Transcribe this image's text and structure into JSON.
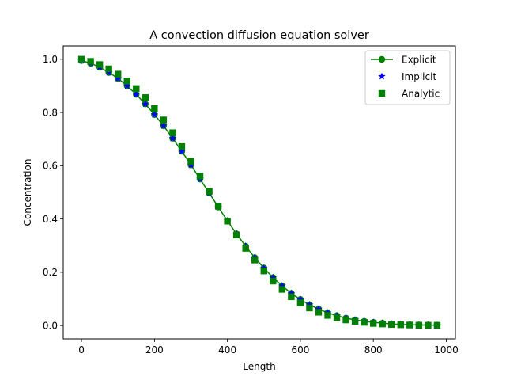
{
  "chart_data": {
    "type": "line",
    "title": "A convection diffusion equation solver",
    "xlabel": "Length",
    "ylabel": "Concentration",
    "xlim": [
      -50,
      1025
    ],
    "ylim": [
      -0.05,
      1.05
    ],
    "xticks": [
      0,
      200,
      400,
      600,
      800,
      1000
    ],
    "xtick_labels": [
      "0",
      "200",
      "400",
      "600",
      "800",
      "1000"
    ],
    "yticks": [
      0.0,
      0.2,
      0.4,
      0.6,
      0.8,
      1.0
    ],
    "ytick_labels": [
      "0.0",
      "0.2",
      "0.4",
      "0.6",
      "0.8",
      "1.0"
    ],
    "grid": false,
    "legend_position": "top-right",
    "x": [
      0,
      25,
      50,
      75,
      100,
      125,
      150,
      175,
      200,
      225,
      250,
      275,
      300,
      325,
      350,
      375,
      400,
      425,
      450,
      475,
      500,
      525,
      550,
      575,
      600,
      625,
      650,
      675,
      700,
      725,
      750,
      775,
      800,
      825,
      850,
      875,
      900,
      925,
      950,
      975
    ],
    "series": [
      {
        "name": "Explicit",
        "marker": "circle",
        "line": true,
        "color": "#008000",
        "values": [
          0.995,
          0.985,
          0.97,
          0.95,
          0.928,
          0.9,
          0.868,
          0.832,
          0.792,
          0.75,
          0.703,
          0.654,
          0.603,
          0.55,
          0.498,
          0.445,
          0.393,
          0.344,
          0.298,
          0.255,
          0.216,
          0.18,
          0.149,
          0.121,
          0.098,
          0.078,
          0.062,
          0.048,
          0.037,
          0.028,
          0.021,
          0.016,
          0.012,
          0.009,
          0.006,
          0.004,
          0.003,
          0.002,
          0.002,
          0.001
        ]
      },
      {
        "name": "Implicit",
        "marker": "star",
        "line": false,
        "color": "#0000ff",
        "values": [
          0.995,
          0.985,
          0.97,
          0.95,
          0.928,
          0.9,
          0.868,
          0.832,
          0.792,
          0.75,
          0.703,
          0.654,
          0.603,
          0.55,
          0.498,
          0.445,
          0.393,
          0.344,
          0.298,
          0.255,
          0.216,
          0.18,
          0.149,
          0.121,
          0.098,
          0.078,
          0.062,
          0.048,
          0.037,
          0.028,
          0.021,
          0.016,
          0.012,
          0.009,
          0.006,
          0.004,
          0.003,
          0.002,
          0.002,
          0.001
        ]
      },
      {
        "name": "Analytic",
        "marker": "square",
        "line": false,
        "color": "#008000",
        "values": [
          1.0,
          0.992,
          0.98,
          0.964,
          0.944,
          0.918,
          0.89,
          0.856,
          0.815,
          0.772,
          0.724,
          0.672,
          0.617,
          0.561,
          0.504,
          0.448,
          0.392,
          0.34,
          0.29,
          0.246,
          0.205,
          0.167,
          0.136,
          0.108,
          0.085,
          0.066,
          0.05,
          0.038,
          0.029,
          0.021,
          0.016,
          0.012,
          0.008,
          0.006,
          0.004,
          0.003,
          0.002,
          0.001,
          0.001,
          0.001
        ]
      }
    ]
  }
}
